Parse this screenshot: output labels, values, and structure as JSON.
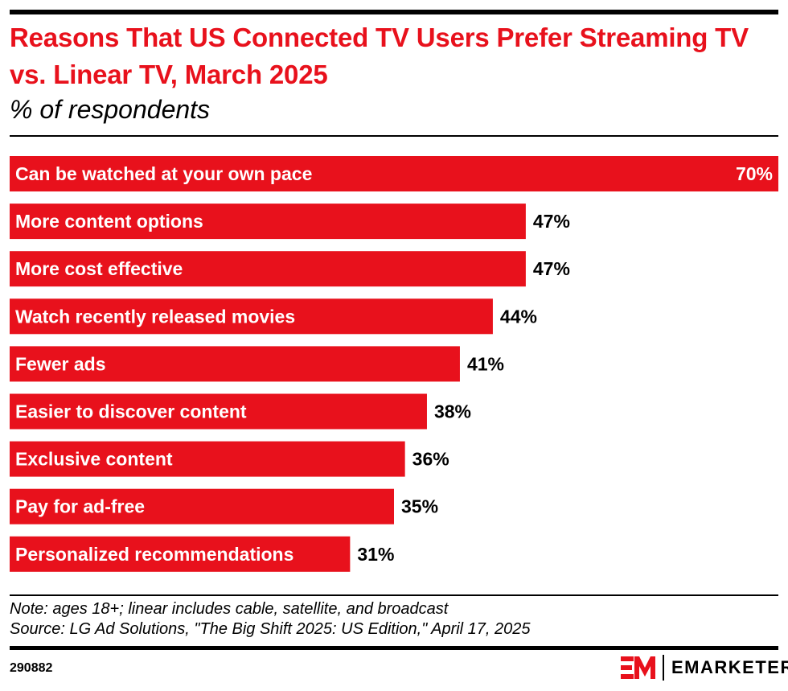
{
  "header": {
    "title": "Reasons That US Connected TV Users Prefer Streaming TV vs. Linear TV, March 2025",
    "subtitle": "% of respondents"
  },
  "chart_data": {
    "type": "bar",
    "orientation": "horizontal",
    "title": "Reasons That US Connected TV Users Prefer Streaming TV vs. Linear TV, March 2025",
    "subtitle": "% of respondents",
    "categories": [
      "Can be watched at your own pace",
      "More content options",
      "More cost effective",
      "Watch recently released movies",
      "Fewer ads",
      "Easier to discover content",
      "Exclusive content",
      "Pay for ad-free",
      "Personalized recommendations"
    ],
    "values": [
      70,
      47,
      47,
      44,
      41,
      38,
      36,
      35,
      31
    ],
    "value_labels": [
      "70%",
      "47%",
      "47%",
      "44%",
      "41%",
      "38%",
      "36%",
      "35%",
      "31%"
    ],
    "xlim": [
      0,
      70
    ],
    "grid": false,
    "bar_color": "#E8111C"
  },
  "footer": {
    "note": "Note: ages 18+; linear includes cable, satellite, and broadcast",
    "source": "Source: LG Ad Solutions, \"The Big Shift 2025: US Edition,\" April 17, 2025",
    "chart_id": "290882",
    "brand": "EMARKETER",
    "brand_color": "#E8111C"
  }
}
